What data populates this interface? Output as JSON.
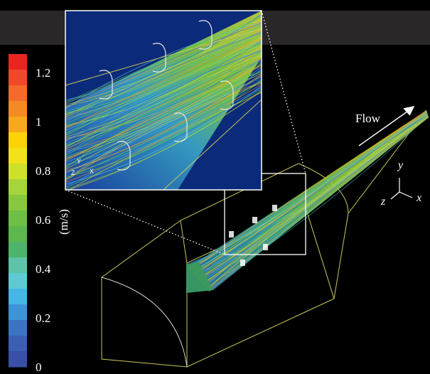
{
  "colorbar": {
    "unit": "(m/s)",
    "ticks": [
      "1.2",
      "1",
      "0.8",
      "0.6",
      "0.4",
      "0.2",
      "0"
    ],
    "colors": [
      "#e8261f",
      "#f0482a",
      "#f46a2a",
      "#f58a24",
      "#f8a81e",
      "#fdd208",
      "#f1e21b",
      "#cde02b",
      "#a5d43b",
      "#86c83f",
      "#6dbf45",
      "#5cb84c",
      "#4fb46b",
      "#5ec3a8",
      "#5fc9d3",
      "#45b6e6",
      "#3d94d7",
      "#3b74c3",
      "#3a5fb3",
      "#3a4fa6"
    ]
  },
  "flow_label": "Flow",
  "axes": {
    "y": "y",
    "x": "x",
    "z": "z"
  },
  "inset_axes": {
    "y": "Y",
    "z": "Z",
    "x": "X"
  },
  "colors": {
    "background": "#000000",
    "top_band": "#2a2728",
    "outline": "#c8c85a",
    "inset_border": "#ffffff",
    "inset_background": "#0c2a7a"
  }
}
